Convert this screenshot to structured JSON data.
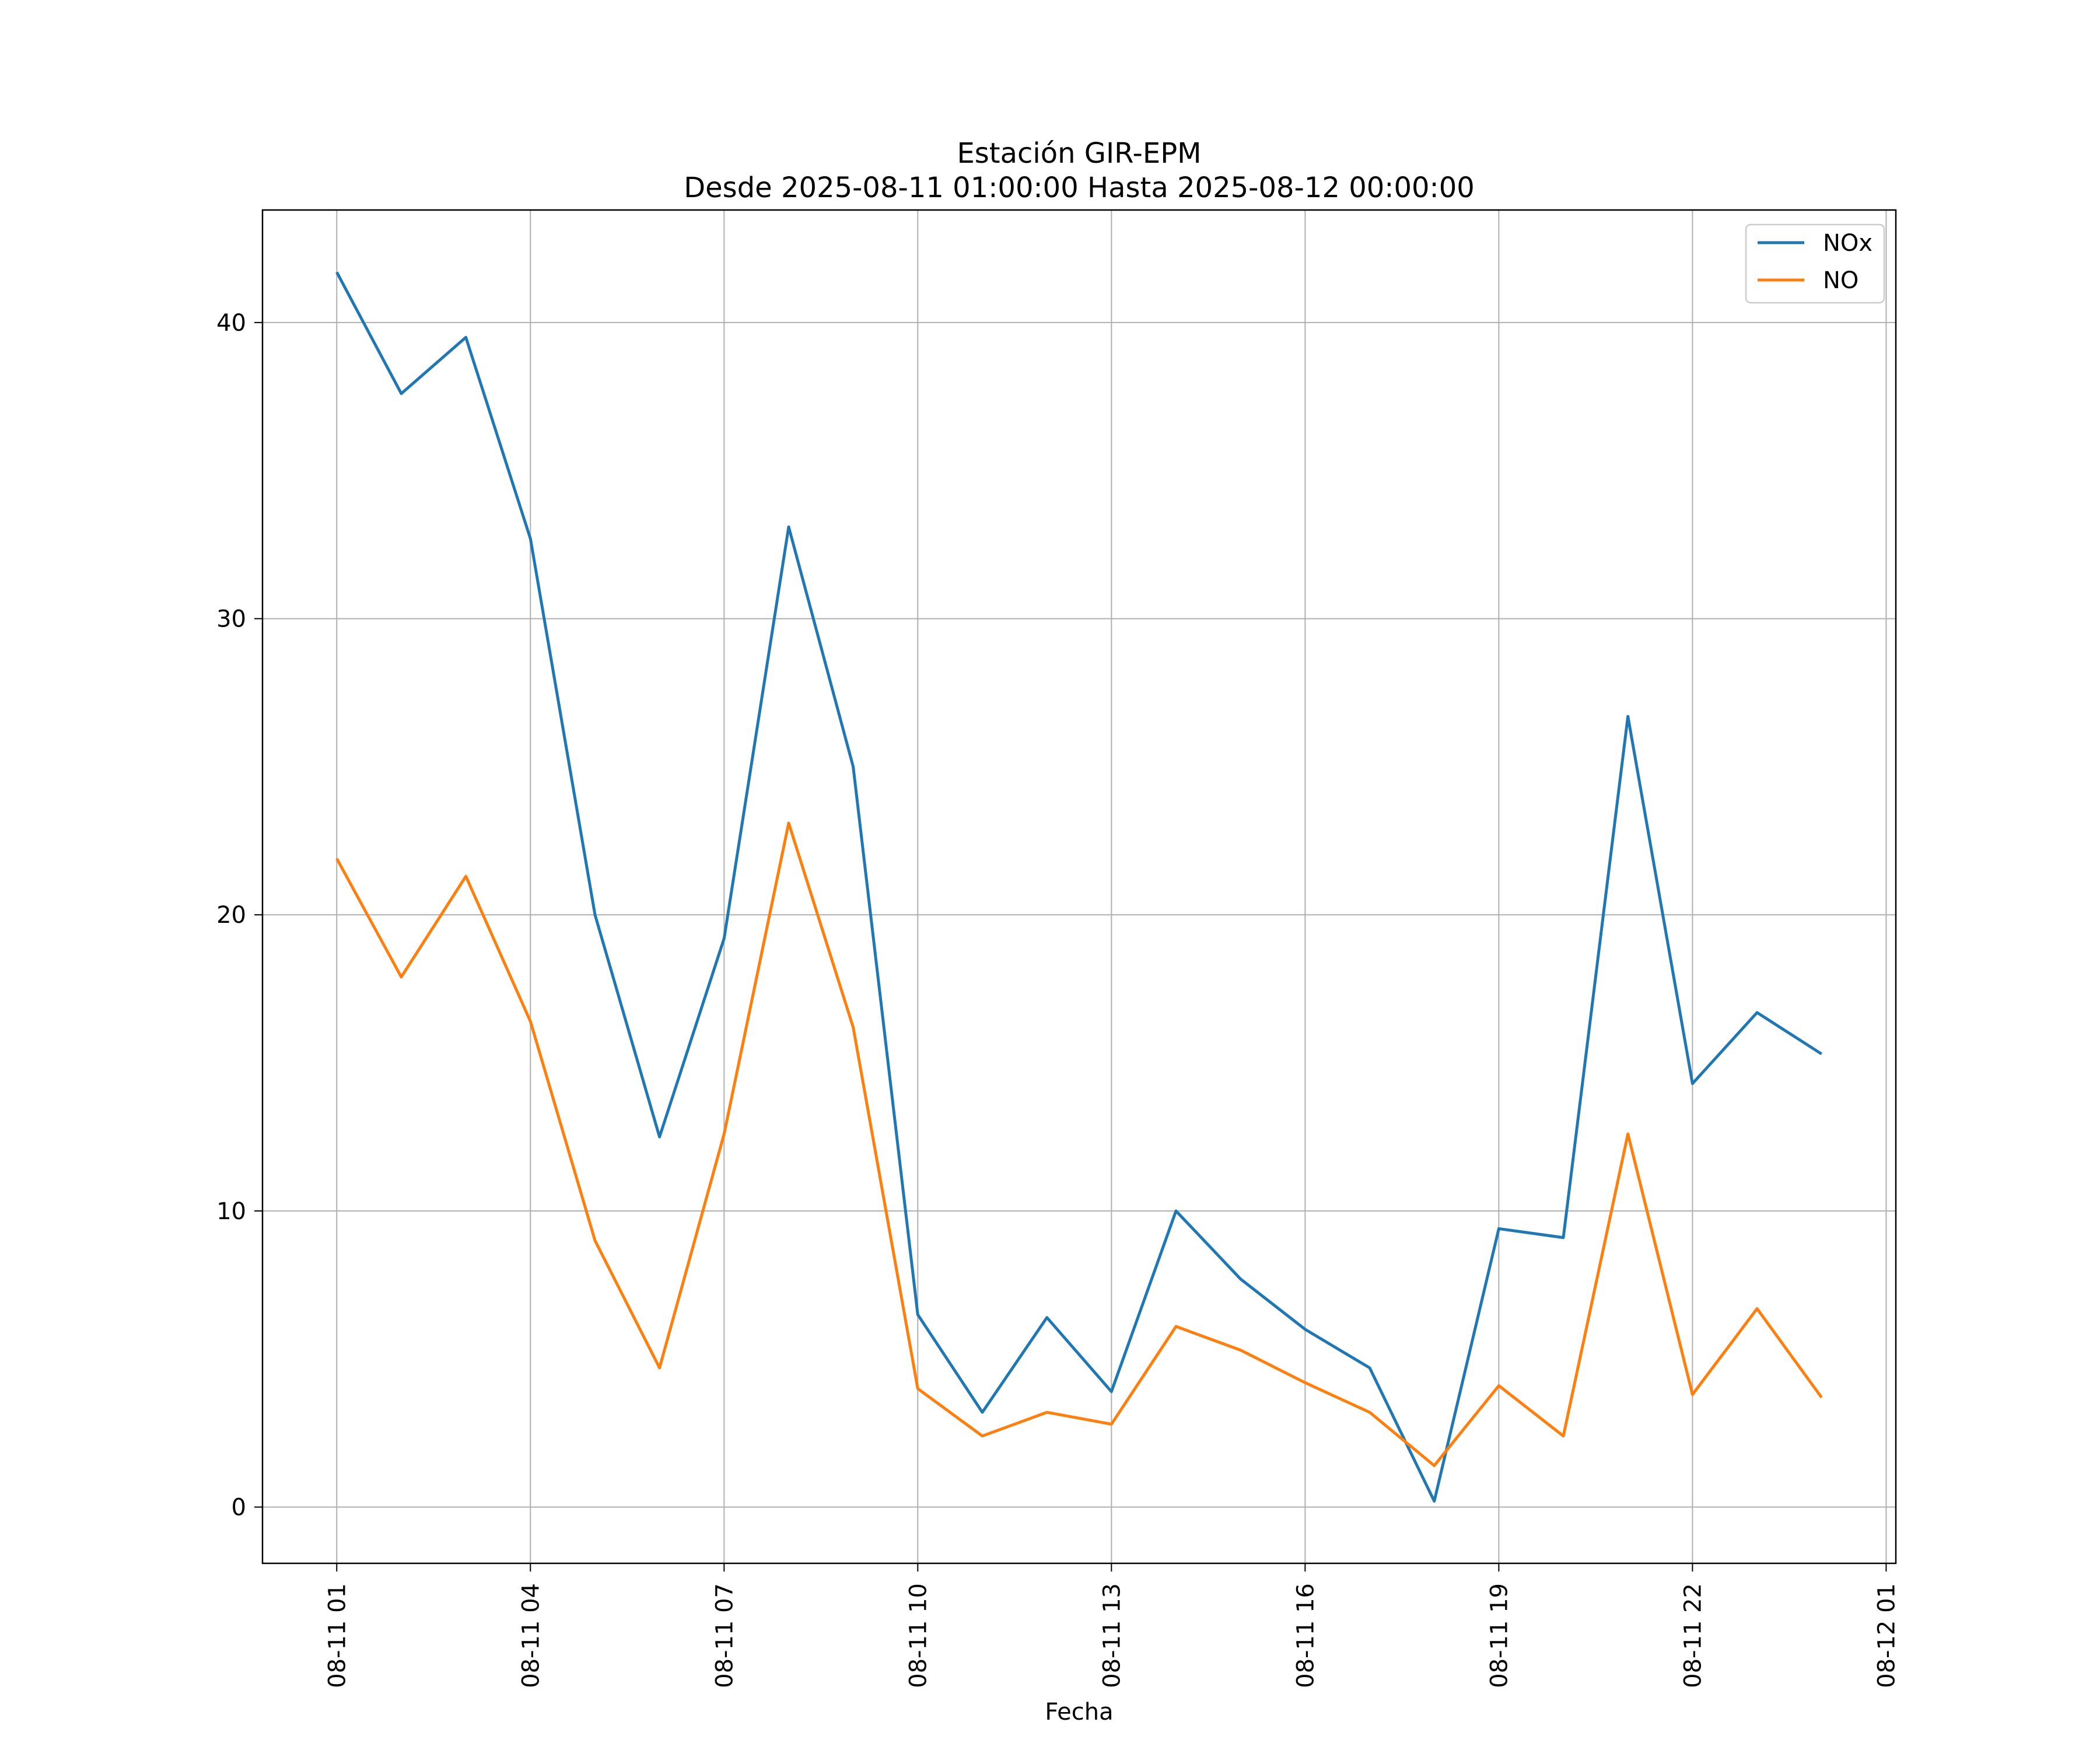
{
  "chart_data": {
    "type": "line",
    "title": "Estación GIR-EPM",
    "subtitle": "Desde 2025-08-11 01:00:00 Hasta 2025-08-12 00:00:00",
    "xlabel": "Fecha",
    "ylabel": "",
    "x": [
      "2025-08-11 01:00",
      "2025-08-11 02:00",
      "2025-08-11 03:00",
      "2025-08-11 04:00",
      "2025-08-11 05:00",
      "2025-08-11 06:00",
      "2025-08-11 07:00",
      "2025-08-11 08:00",
      "2025-08-11 09:00",
      "2025-08-11 10:00",
      "2025-08-11 11:00",
      "2025-08-11 12:00",
      "2025-08-11 13:00",
      "2025-08-11 14:00",
      "2025-08-11 15:00",
      "2025-08-11 16:00",
      "2025-08-11 17:00",
      "2025-08-11 18:00",
      "2025-08-11 19:00",
      "2025-08-11 20:00",
      "2025-08-11 21:00",
      "2025-08-11 22:00",
      "2025-08-11 23:00",
      "2025-08-12 00:00"
    ],
    "series": [
      {
        "name": "NOx",
        "color": "#1f77b4",
        "values": [
          41.7,
          37.6,
          39.5,
          32.7,
          20.0,
          12.5,
          19.2,
          33.1,
          25.0,
          6.5,
          3.2,
          6.4,
          3.9,
          10.0,
          7.7,
          6.0,
          4.7,
          0.2,
          9.4,
          9.1,
          26.7,
          14.3,
          16.7,
          15.3
        ]
      },
      {
        "name": "NO",
        "color": "#ff7f0e",
        "values": [
          21.9,
          17.9,
          21.3,
          16.4,
          9.0,
          4.7,
          12.6,
          23.1,
          16.2,
          4.0,
          2.4,
          3.2,
          2.8,
          6.1,
          5.3,
          4.2,
          3.2,
          1.4,
          4.1,
          2.4,
          12.6,
          3.8,
          6.7,
          3.7
        ]
      }
    ],
    "x_ticks": [
      "08-11 01",
      "08-11 04",
      "08-11 07",
      "08-11 10",
      "08-11 13",
      "08-11 16",
      "08-11 19",
      "08-11 22",
      "08-12 01"
    ],
    "x_range": [
      "2025-08-10 23:51",
      "2025-08-12 01:09"
    ],
    "y_ticks": [
      "0",
      "10",
      "20",
      "30",
      "40"
    ],
    "ylim": [
      -1.9,
      43.8
    ],
    "grid": true,
    "legend_position": "top-right"
  }
}
